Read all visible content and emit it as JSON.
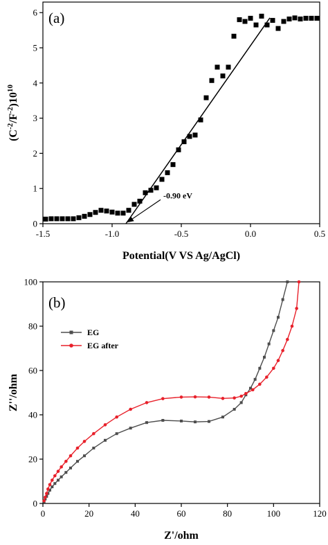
{
  "chart_data": [
    {
      "type": "scatter",
      "panel_label": "(a)",
      "xlabel": "Potential(V VS Ag/AgCl)",
      "ylabel": "(C⁻²/F⁻²)10¹⁰",
      "xlim": [
        -1.5,
        0.5
      ],
      "ylim": [
        0,
        6.3
      ],
      "x_ticks": [
        -1.5,
        -1.0,
        -0.5,
        0.0,
        0.5
      ],
      "x_tick_labels": [
        "-1.5",
        "-1.0",
        "-0.5",
        "0.0",
        "0.5"
      ],
      "y_ticks": [
        0,
        1,
        2,
        3,
        4,
        5,
        6
      ],
      "y_tick_labels": [
        "0",
        "1",
        "2",
        "3",
        "4",
        "5",
        "6"
      ],
      "grid": false,
      "color": "#000000",
      "series": [
        {
          "x": [
            -1.48,
            -1.44,
            -1.4,
            -1.36,
            -1.32,
            -1.28,
            -1.24,
            -1.2,
            -1.16,
            -1.12,
            -1.08,
            -1.04,
            -1.0,
            -0.96,
            -0.92,
            -0.88,
            -0.84,
            -0.8,
            -0.76,
            -0.72,
            -0.68,
            -0.64,
            -0.6,
            -0.56,
            -0.52,
            -0.48,
            -0.44,
            -0.4,
            -0.36,
            -0.32,
            -0.28,
            -0.24,
            -0.2,
            -0.16,
            -0.12,
            -0.08,
            -0.04,
            0.0,
            0.04,
            0.08,
            0.12,
            0.16,
            0.2,
            0.24,
            0.28,
            0.32,
            0.36,
            0.4,
            0.44,
            0.48
          ],
          "y": [
            0.13,
            0.14,
            0.14,
            0.14,
            0.14,
            0.14,
            0.17,
            0.21,
            0.26,
            0.32,
            0.38,
            0.36,
            0.33,
            0.3,
            0.3,
            0.38,
            0.55,
            0.64,
            0.88,
            0.95,
            1.02,
            1.26,
            1.45,
            1.68,
            2.1,
            2.33,
            2.48,
            2.52,
            2.95,
            3.58,
            4.07,
            4.45,
            4.2,
            4.45,
            5.33,
            5.8,
            5.75,
            5.84,
            5.65,
            5.9,
            5.65,
            5.78,
            5.55,
            5.75,
            5.82,
            5.85,
            5.82,
            5.84,
            5.84,
            5.84
          ]
        }
      ],
      "fit_line": {
        "x": [
          -0.9,
          0.14
        ],
        "y": [
          0.0,
          5.85
        ]
      },
      "annotation": {
        "text": "-0.90 eV",
        "arrow_to_x": -0.9,
        "arrow_to_y": 0.0,
        "text_x": -0.63,
        "text_y": 0.8
      }
    },
    {
      "type": "line",
      "panel_label": "(b)",
      "xlabel": "Z'/ohm",
      "ylabel": "Z''/ohm",
      "xlim": [
        0,
        120
      ],
      "ylim": [
        0,
        100
      ],
      "x_ticks": [
        0,
        20,
        40,
        60,
        80,
        100,
        120
      ],
      "x_tick_labels": [
        "0",
        "20",
        "40",
        "60",
        "80",
        "100",
        "120"
      ],
      "y_ticks": [
        0,
        20,
        40,
        60,
        80,
        100
      ],
      "y_tick_labels": [
        "0",
        "20",
        "40",
        "60",
        "80",
        "100"
      ],
      "grid": false,
      "legend_position": "top-left",
      "series": [
        {
          "name": "EG",
          "color": "#4d4d4d",
          "x": [
            0.5,
            1.0,
            1.6,
            2.2,
            3.0,
            4.0,
            5.2,
            6.6,
            8.0,
            10,
            12,
            15,
            18,
            22,
            27,
            32,
            38,
            45,
            52,
            60,
            66,
            72,
            78,
            83,
            86,
            88,
            90,
            92,
            94,
            96,
            98,
            100,
            102,
            104,
            106
          ],
          "y": [
            0.8,
            2.0,
            3.2,
            4.5,
            6.0,
            7.5,
            9.0,
            10.5,
            12,
            14,
            16,
            19,
            21.5,
            25,
            28.5,
            31.5,
            34,
            36.5,
            37.5,
            37.2,
            36.8,
            37.0,
            39.0,
            42.5,
            45.5,
            49,
            52,
            56,
            61,
            66,
            72,
            78,
            84,
            92,
            100
          ]
        },
        {
          "name": "EG after",
          "color": "#e8202a",
          "x": [
            0.5,
            1.0,
            1.6,
            2.2,
            3.0,
            4.0,
            5.2,
            6.6,
            8.0,
            10,
            12,
            15,
            18,
            22,
            27,
            32,
            38,
            45,
            52,
            60,
            66,
            72,
            78,
            83,
            86,
            88,
            91,
            94,
            97,
            100,
            102,
            104,
            106,
            108,
            110,
            111
          ],
          "y": [
            1.2,
            2.8,
            4.5,
            6.5,
            8.5,
            10.5,
            12.5,
            14.5,
            16.5,
            19,
            21.5,
            25,
            28,
            31.5,
            35.5,
            39,
            42.5,
            45.5,
            47.3,
            48.0,
            48.1,
            48.0,
            47.4,
            47.6,
            48.4,
            49.6,
            51.3,
            53.8,
            57.0,
            61.0,
            64.5,
            69,
            74,
            80,
            88,
            100
          ]
        }
      ]
    }
  ]
}
